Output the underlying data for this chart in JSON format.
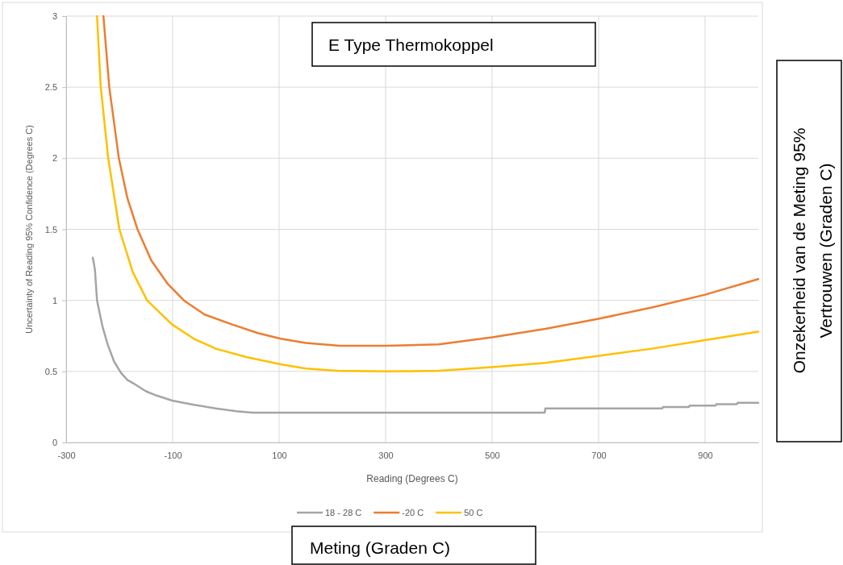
{
  "chart_data": {
    "type": "line",
    "title": "E Type Thermokoppel",
    "xlabel": "Reading (Degrees C)",
    "ylabel": "Uncertainty of Reading 95% Confidence (Degrees C)",
    "annotations": [
      "Onzekerheid van de Meting 95% Vertrouwen (Graden C)",
      "Meting (Graden C)"
    ],
    "xlim": [
      -300,
      1000
    ],
    "xticks": [
      -300,
      -100,
      100,
      300,
      500,
      700,
      900
    ],
    "ylim": [
      0,
      3
    ],
    "yticks": [
      0,
      0.5,
      1,
      1.5,
      2,
      2.5,
      3
    ],
    "grid": true,
    "legend": "bottom",
    "marker": "none",
    "line_style": "solid",
    "series": [
      {
        "name": "18 - 28 C",
        "color": "#a5a5a5",
        "x": [
          -250,
          -246,
          -242,
          -232,
          -222,
          -210,
          -197,
          -185,
          -171,
          -150,
          -130,
          -101,
          -60,
          -19,
          20,
          50,
          100,
          200,
          300,
          400,
          500,
          599,
          600,
          700,
          820,
          821,
          870,
          871,
          920,
          921,
          960,
          961,
          1000
        ],
        "values": [
          1.3,
          1.22,
          1.0,
          0.82,
          0.69,
          0.57,
          0.49,
          0.44,
          0.41,
          0.36,
          0.33,
          0.295,
          0.265,
          0.24,
          0.22,
          0.21,
          0.21,
          0.21,
          0.21,
          0.21,
          0.21,
          0.21,
          0.24,
          0.24,
          0.24,
          0.25,
          0.25,
          0.26,
          0.26,
          0.27,
          0.27,
          0.28,
          0.28
        ]
      },
      {
        "name": "-20 C",
        "color": "#ed7d31",
        "x": [
          -230,
          -219,
          -201,
          -185,
          -166,
          -140,
          -110,
          -79,
          -40,
          12,
          60,
          103,
          150,
          214,
          300,
          400,
          500,
          600,
          700,
          800,
          900,
          1000
        ],
        "values": [
          3,
          2.5,
          2,
          1.72,
          1.5,
          1.28,
          1.12,
          1.0,
          0.9,
          0.83,
          0.77,
          0.73,
          0.7,
          0.68,
          0.68,
          0.69,
          0.74,
          0.8,
          0.87,
          0.95,
          1.04,
          1.15
        ]
      },
      {
        "name": "50 C",
        "color": "#ffc000",
        "x": [
          -242,
          -235,
          -221,
          -200,
          -175,
          -148,
          -101,
          -60,
          -19,
          40,
          103,
          150,
          209,
          300,
          400,
          500,
          600,
          700,
          800,
          900,
          1000
        ],
        "values": [
          3,
          2.5,
          2,
          1.5,
          1.2,
          1.0,
          0.83,
          0.73,
          0.66,
          0.6,
          0.55,
          0.52,
          0.505,
          0.5,
          0.505,
          0.53,
          0.56,
          0.61,
          0.66,
          0.72,
          0.78
        ]
      }
    ]
  }
}
